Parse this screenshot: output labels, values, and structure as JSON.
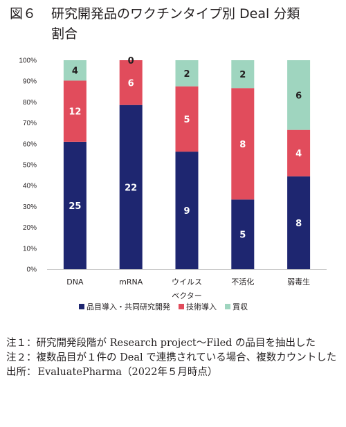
{
  "figure": {
    "number": "図６",
    "title_line1": "研究開発品のワクチンタイプ別 Deal 分類",
    "title_line2": "割合"
  },
  "chart_data": {
    "type": "bar",
    "stacked": true,
    "percent_stacked": true,
    "categories": [
      "DNA",
      "mRNA",
      "ウイルス\nベクター",
      "不活化",
      "弱毒生"
    ],
    "series": [
      {
        "name": "品目導入・共同研究開発",
        "color": "#1e2670",
        "values": [
          25,
          22,
          9,
          5,
          8
        ]
      },
      {
        "name": "技術導入",
        "color": "#e14c5c",
        "values": [
          12,
          6,
          5,
          8,
          4
        ]
      },
      {
        "name": "買収",
        "color": "#9fd5bf",
        "values": [
          4,
          0,
          2,
          2,
          6
        ]
      }
    ],
    "y_ticks": [
      "0%",
      "10%",
      "20%",
      "30%",
      "40%",
      "50%",
      "60%",
      "70%",
      "80%",
      "90%",
      "100%"
    ],
    "ylim": [
      0,
      100
    ],
    "legend_position": "bottom",
    "grid": false
  },
  "notes": [
    {
      "label": "注１：",
      "text": "研究開発段階が Research project～Filed の品目を抽出した"
    },
    {
      "label": "注２：",
      "text": "複数品目が１件の Deal で連携されている場合、複数カウントした"
    },
    {
      "label": "出所：",
      "text": "EvaluatePharma（2022年５月時点）"
    }
  ]
}
